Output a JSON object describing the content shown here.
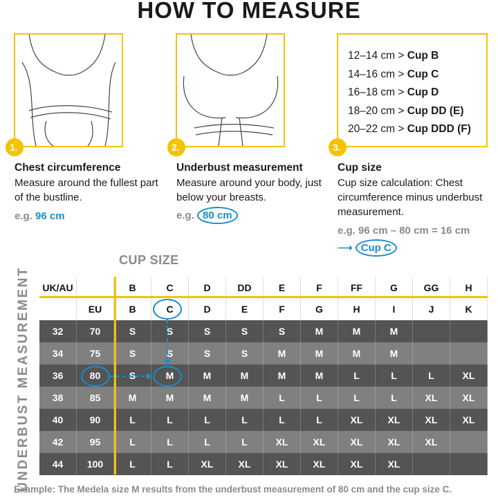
{
  "title": "HOW TO MEASURE",
  "colors": {
    "accent_yellow": "#f2c300",
    "highlight_blue": "#1a8dc8",
    "row_dark": "#545454",
    "row_light": "#808080"
  },
  "steps": [
    {
      "number": "1.",
      "heading": "Chest circumference",
      "text": "Measure around the fullest part of the bustline.",
      "eg_prefix": "e.g.",
      "eg_value": "96 cm"
    },
    {
      "number": "2.",
      "heading": "Underbust measurement",
      "text": "Measure around your body, just below your breasts.",
      "eg_prefix": "e.g.",
      "eg_value": "80 cm"
    },
    {
      "number": "3.",
      "heading": "Cup size",
      "text": "Cup size calculation: Chest circumference minus underbust measurement.",
      "eg_text": "e.g. 96 cm – 80 cm = 16 cm",
      "result": "Cup C"
    }
  ],
  "cup_ranges": [
    {
      "range": "12–14 cm >",
      "cup": "Cup B"
    },
    {
      "range": "14–16 cm >",
      "cup": "Cup C"
    },
    {
      "range": "16–18 cm >",
      "cup": "Cup D"
    },
    {
      "range": "18–20 cm >",
      "cup": "Cup DD (E)"
    },
    {
      "range": "20–22 cm >",
      "cup": "Cup DDD (F)"
    }
  ],
  "table": {
    "cup_size_label": "CUP SIZE",
    "underbust_label": "UNDERBUST MEASUREMENT",
    "header_uk": [
      "UK/AU",
      "",
      "B",
      "C",
      "D",
      "DD",
      "E",
      "F",
      "FF",
      "G",
      "GG",
      "H"
    ],
    "header_eu": [
      "",
      "EU",
      "B",
      "C",
      "D",
      "E",
      "F",
      "G",
      "H",
      "I",
      "J",
      "K"
    ],
    "rows": [
      [
        "32",
        "70",
        "S",
        "S",
        "S",
        "S",
        "S",
        "M",
        "M",
        "M",
        "",
        ""
      ],
      [
        "34",
        "75",
        "S",
        "S",
        "S",
        "S",
        "M",
        "M",
        "M",
        "M",
        "",
        ""
      ],
      [
        "36",
        "80",
        "S",
        "M",
        "M",
        "M",
        "M",
        "M",
        "L",
        "L",
        "L",
        "XL"
      ],
      [
        "38",
        "85",
        "M",
        "M",
        "M",
        "M",
        "L",
        "L",
        "L",
        "L",
        "XL",
        "XL"
      ],
      [
        "40",
        "90",
        "L",
        "L",
        "L",
        "L",
        "L",
        "L",
        "XL",
        "XL",
        "XL",
        "XL"
      ],
      [
        "42",
        "95",
        "L",
        "L",
        "L",
        "L",
        "XL",
        "XL",
        "XL",
        "XL",
        "XL",
        ""
      ],
      [
        "44",
        "100",
        "L",
        "L",
        "XL",
        "XL",
        "XL",
        "XL",
        "XL",
        "XL",
        "",
        ""
      ]
    ],
    "highlight": {
      "eu": "80",
      "cup": "C",
      "size": "M"
    }
  },
  "footnote": "Example: The Medela size M results from the underbust measurement of 80 cm and the cup size C."
}
